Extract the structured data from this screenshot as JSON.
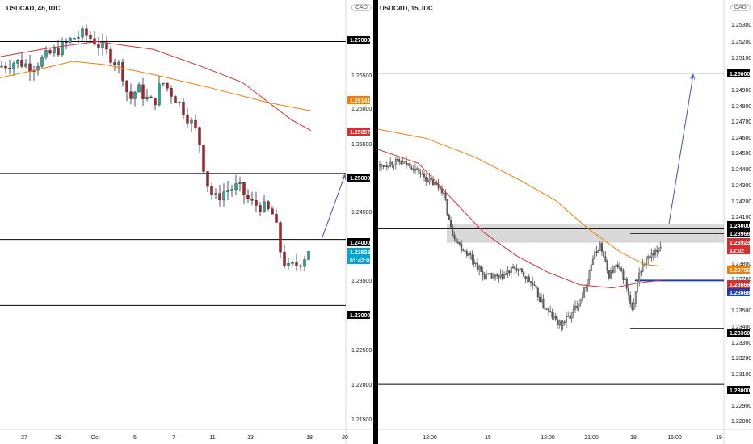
{
  "charts": [
    {
      "symbol_title": "USDCAD, 4h, IDC",
      "currency_badge": "CAD",
      "price_ticks": [
        "1.26500",
        "1.26000",
        "1.25500",
        "1.24500",
        "1.23500",
        "1.22500",
        "1.22000",
        "1.21500"
      ],
      "date_ticks": [
        "27",
        "29",
        "Oct",
        "5",
        "7",
        "11",
        "13",
        "18",
        "20"
      ],
      "price_labels": [
        {
          "text": "1.27000",
          "color": "#000000"
        },
        {
          "text": "1.26141",
          "color": "#f57c00"
        },
        {
          "text": "1.25657",
          "color": "#d32f2f"
        },
        {
          "text": "1.25000",
          "color": "#000000"
        },
        {
          "text": "1.24000",
          "color": "#000000"
        },
        {
          "text": "1.23923",
          "color": "#00a4d6"
        },
        {
          "text": "01:42:02",
          "color": "#00a4d6"
        },
        {
          "text": "1.23000",
          "color": "#000000"
        }
      ]
    },
    {
      "symbol_title": "USDCAD, 15, IDC",
      "currency_badge": "CAD",
      "price_ticks": [
        "1.25300",
        "1.25200",
        "1.25100",
        "1.24900",
        "1.24800",
        "1.24700",
        "1.24600",
        "1.24500",
        "1.24400",
        "1.24300",
        "1.24200",
        "1.24100",
        "1.23800",
        "1.23700",
        "1.23500",
        "1.23400",
        "1.23300",
        "1.23200",
        "1.23100",
        "1.22900",
        "1.22800"
      ],
      "date_ticks": [
        "12:00",
        "15",
        "12:00",
        "21:00",
        "18",
        "15:00",
        "19"
      ],
      "price_labels": [
        {
          "text": "1.25000",
          "color": "#000000"
        },
        {
          "text": "1.24000",
          "color": "#000000"
        },
        {
          "text": "1.23968",
          "color": "#000000"
        },
        {
          "text": "1.23923",
          "color": "#d32f2f"
        },
        {
          "text": "13:02",
          "color": "#d32f2f"
        },
        {
          "text": "1.23756",
          "color": "#f57c00"
        },
        {
          "text": "1.23669",
          "color": "#d32f2f"
        },
        {
          "text": "1.23668",
          "color": "#1e40af"
        },
        {
          "text": "1.23360",
          "color": "#000000"
        },
        {
          "text": "1.23000",
          "color": "#000000"
        }
      ]
    }
  ],
  "chart_data": [
    {
      "type": "candlestick",
      "title": "USDCAD, 4h, IDC",
      "ylim": [
        1.2112,
        1.2763
      ],
      "y_tick_values": [
        1.265,
        1.26,
        1.255,
        1.245,
        1.235,
        1.225,
        1.22,
        1.215
      ],
      "horizontal_levels": [
        1.27,
        1.25,
        1.24,
        1.23
      ],
      "moving_averages": [
        {
          "color": "#f57c00",
          "last_value": 1.26141,
          "path": [
            [
              0,
              1.2645
            ],
            [
              45,
              1.2657
            ],
            [
              90,
              1.267
            ],
            [
              130,
              1.2665
            ],
            [
              190,
              1.265
            ],
            [
              260,
              1.263
            ],
            [
              330,
              1.2608
            ],
            [
              385,
              1.2595
            ]
          ]
        },
        {
          "color": "#d32f2f",
          "last_value": 1.25657,
          "path": [
            [
              0,
              1.2677
            ],
            [
              60,
              1.269
            ],
            [
              120,
              1.27
            ],
            [
              190,
              1.2688
            ],
            [
              250,
              1.2662
            ],
            [
              300,
              1.2638
            ],
            [
              330,
              1.261
            ],
            [
              360,
              1.2582
            ],
            [
              385,
              1.2565
            ]
          ]
        }
      ],
      "price_path": [
        [
          0,
          1.2662
        ],
        [
          20,
          1.267
        ],
        [
          40,
          1.2662
        ],
        [
          60,
          1.268
        ],
        [
          75,
          1.269
        ],
        [
          90,
          1.2705
        ],
        [
          105,
          1.2712
        ],
        [
          120,
          1.2698
        ],
        [
          135,
          1.268
        ],
        [
          150,
          1.266
        ],
        [
          160,
          1.261
        ],
        [
          170,
          1.263
        ],
        [
          180,
          1.2615
        ],
        [
          190,
          1.2605
        ],
        [
          200,
          1.264
        ],
        [
          210,
          1.2625
        ],
        [
          220,
          1.261
        ],
        [
          230,
          1.259
        ],
        [
          245,
          1.256
        ],
        [
          255,
          1.249
        ],
        [
          265,
          1.246
        ],
        [
          280,
          1.2475
        ],
        [
          295,
          1.248
        ],
        [
          310,
          1.2455
        ],
        [
          325,
          1.245
        ],
        [
          340,
          1.2435
        ],
        [
          345,
          1.239
        ],
        [
          355,
          1.2355
        ],
        [
          365,
          1.236
        ],
        [
          375,
          1.237
        ],
        [
          385,
          1.2392
        ]
      ],
      "projection": {
        "color": "#3f51b5",
        "from": [
          398,
          1.24
        ],
        "to": [
          427,
          1.2498
        ]
      },
      "last_price": 1.23923,
      "x_categories": [
        "27",
        "29",
        "Oct",
        "5",
        "7",
        "11",
        "13",
        "18",
        "20"
      ]
    },
    {
      "type": "candlestick",
      "title": "USDCAD, 15, IDC",
      "ylim": [
        1.2271,
        1.2547
      ],
      "y_tick_values": [
        1.253,
        1.252,
        1.251,
        1.249,
        1.248,
        1.247,
        1.246,
        1.245,
        1.244,
        1.243,
        1.242,
        1.241,
        1.238,
        1.237,
        1.235,
        1.234,
        1.233,
        1.232,
        1.231,
        1.229,
        1.228
      ],
      "horizontal_levels": [
        1.25,
        1.24,
        1.23
      ],
      "supply_zone": [
        1.2391,
        1.2403
      ],
      "short_levels": [
        1.23968,
        1.2336
      ],
      "blue_level": 1.23668,
      "moving_averages": [
        {
          "color": "#f57c00",
          "last_value": 1.23756,
          "path": [
            [
              0,
              1.2464
            ],
            [
              60,
              1.2458
            ],
            [
              120,
              1.2446
            ],
            [
              180,
              1.243
            ],
            [
              220,
              1.2418
            ],
            [
              260,
              1.24
            ],
            [
              300,
              1.2385
            ],
            [
              330,
              1.2377
            ],
            [
              350,
              1.2376
            ]
          ]
        },
        {
          "color": "#d32f2f",
          "last_value": 1.23669,
          "path": [
            [
              0,
              1.2451
            ],
            [
              50,
              1.2442
            ],
            [
              90,
              1.242
            ],
            [
              130,
              1.2398
            ],
            [
              170,
              1.2383
            ],
            [
              210,
              1.2372
            ],
            [
              250,
              1.2364
            ],
            [
              290,
              1.2362
            ],
            [
              320,
              1.2365
            ],
            [
              350,
              1.2367
            ]
          ]
        }
      ],
      "price_path": [
        [
          0,
          1.244
        ],
        [
          20,
          1.2443
        ],
        [
          40,
          1.2441
        ],
        [
          60,
          1.2432
        ],
        [
          80,
          1.2425
        ],
        [
          90,
          1.24
        ],
        [
          100,
          1.239
        ],
        [
          115,
          1.2382
        ],
        [
          130,
          1.237
        ],
        [
          150,
          1.2368
        ],
        [
          170,
          1.2375
        ],
        [
          190,
          1.2365
        ],
        [
          205,
          1.235
        ],
        [
          225,
          1.2338
        ],
        [
          240,
          1.2345
        ],
        [
          255,
          1.236
        ],
        [
          265,
          1.238
        ],
        [
          275,
          1.239
        ],
        [
          285,
          1.237
        ],
        [
          295,
          1.2376
        ],
        [
          305,
          1.2368
        ],
        [
          315,
          1.2345
        ],
        [
          322,
          1.237
        ],
        [
          332,
          1.238
        ],
        [
          342,
          1.2383
        ],
        [
          350,
          1.239
        ]
      ],
      "projection": {
        "color": "#3f51b5",
        "from": [
          360,
          1.2403
        ],
        "to": [
          390,
          1.2499
        ]
      },
      "last_price": 1.23923,
      "x_categories": [
        "12:00",
        "15",
        "12:00",
        "21:00",
        "18",
        "15:00",
        "19"
      ]
    }
  ]
}
